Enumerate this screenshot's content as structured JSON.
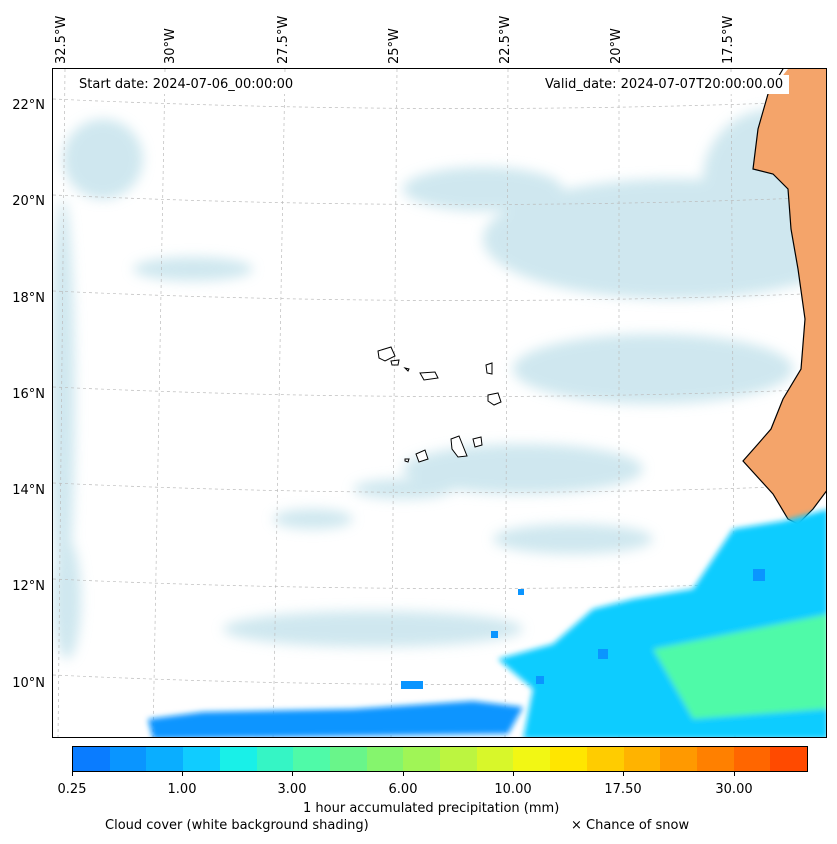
{
  "map": {
    "start_date": "Start date: 2024-07-06_00:00:00",
    "valid_date": "Valid_date: 2024-07-07T20:00:00.00",
    "lon_labels": [
      "32.5°W",
      "30°W",
      "27.5°W",
      "25°W",
      "22.5°W",
      "20°W",
      "17.5°W"
    ],
    "lat_labels": [
      "22°N",
      "20°N",
      "18°N",
      "16°N",
      "14°N",
      "12°N",
      "10°N"
    ],
    "land_color": "#f4a46a",
    "cloud_color": "#bfe0ea",
    "grid": "dashed"
  },
  "colorbar": {
    "label": "1 hour accumulated precipitation (mm)",
    "tick_labels": [
      "0.25",
      "1.00",
      "3.00",
      "6.00",
      "10.00",
      "17.50",
      "30.00"
    ],
    "colors": [
      "#0a7cff",
      "#0a95ff",
      "#0aaeff",
      "#10ccff",
      "#19f0e8",
      "#35f5c5",
      "#4ffaa8",
      "#69f58a",
      "#85f56d",
      "#a0f556",
      "#bcf540",
      "#d8f72a",
      "#f2f714",
      "#ffe600",
      "#ffcc00",
      "#ffb300",
      "#ff9900",
      "#ff8000",
      "#ff6600",
      "#ff4a00"
    ]
  },
  "footer": {
    "cloud_note": "Cloud cover (white background shading)",
    "snow_note": "× Chance of snow"
  }
}
